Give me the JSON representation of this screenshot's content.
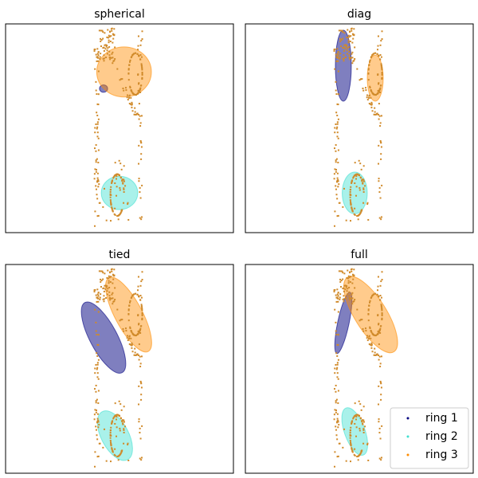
{
  "chart_data": [
    {
      "type": "scatter",
      "title": "spherical",
      "xlim": [
        0,
        1
      ],
      "ylim": [
        0,
        1
      ],
      "ticks": "none",
      "ellipses": [
        {
          "series": "ring 1",
          "cx": 0.43,
          "cy": 0.69,
          "rx": 0.018,
          "ry": 0.018,
          "angle": 0
        },
        {
          "series": "ring 2",
          "cx": 0.5,
          "cy": 0.19,
          "rx": 0.08,
          "ry": 0.08,
          "angle": 0
        },
        {
          "series": "ring 3",
          "cx": 0.52,
          "cy": 0.77,
          "rx": 0.12,
          "ry": 0.12,
          "angle": 0
        }
      ]
    },
    {
      "type": "scatter",
      "title": "diag",
      "xlim": [
        0,
        1
      ],
      "ylim": [
        0,
        1
      ],
      "ticks": "none",
      "ellipses": [
        {
          "series": "ring 1",
          "cx": 0.43,
          "cy": 0.8,
          "rx": 0.035,
          "ry": 0.17,
          "angle": 0
        },
        {
          "series": "ring 2",
          "cx": 0.48,
          "cy": 0.19,
          "rx": 0.055,
          "ry": 0.1,
          "angle": 0
        },
        {
          "series": "ring 3",
          "cx": 0.57,
          "cy": 0.74,
          "rx": 0.035,
          "ry": 0.11,
          "angle": 0
        }
      ]
    },
    {
      "type": "scatter",
      "title": "tied",
      "xlim": [
        0,
        1
      ],
      "ylim": [
        0,
        1
      ],
      "ticks": "none",
      "ellipses": [
        {
          "series": "ring 1",
          "cx": 0.43,
          "cy": 0.65,
          "rx": 0.06,
          "ry": 0.19,
          "angle": -28
        },
        {
          "series": "ring 2",
          "cx": 0.48,
          "cy": 0.18,
          "rx": 0.06,
          "ry": 0.13,
          "angle": -28
        },
        {
          "series": "ring 3",
          "cx": 0.54,
          "cy": 0.76,
          "rx": 0.06,
          "ry": 0.2,
          "angle": -28
        }
      ]
    },
    {
      "type": "scatter",
      "title": "full",
      "xlim": [
        0,
        1
      ],
      "ylim": [
        0,
        1
      ],
      "ticks": "none",
      "ellipses": [
        {
          "series": "ring 1",
          "cx": 0.43,
          "cy": 0.72,
          "rx": 0.025,
          "ry": 0.15,
          "angle": 12
        },
        {
          "series": "ring 2",
          "cx": 0.48,
          "cy": 0.2,
          "rx": 0.045,
          "ry": 0.12,
          "angle": -20
        },
        {
          "series": "ring 3",
          "cx": 0.55,
          "cy": 0.76,
          "rx": 0.07,
          "ry": 0.21,
          "angle": -32
        }
      ]
    }
  ],
  "legend": {
    "placement": "lower-right",
    "panel": "full",
    "entries": [
      {
        "label": "ring 1",
        "color": "#000080"
      },
      {
        "label": "ring 2",
        "color": "#40e0d0"
      },
      {
        "label": "ring 3",
        "color": "#ff8c00"
      }
    ]
  },
  "colors": {
    "ring 1": "#000080",
    "ring 2": "#40e0d0",
    "ring 3": "#ff8c00",
    "points": "#d08a2a"
  }
}
